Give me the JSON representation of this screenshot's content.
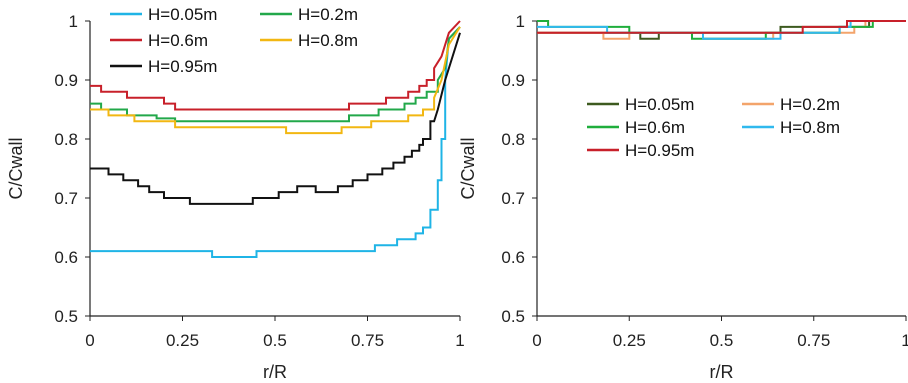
{
  "chart_data": [
    {
      "type": "line",
      "xlabel": "r/R",
      "ylabel": "C/Cwall",
      "xlim": [
        0,
        1
      ],
      "ylim": [
        0.5,
        1
      ],
      "xticks": [
        "0",
        "0.25",
        "0.5",
        "0.75",
        "1"
      ],
      "yticks": [
        "0.5",
        "0.6",
        "0.7",
        "0.8",
        "0.9",
        "1"
      ],
      "legend": "top",
      "series": [
        {
          "name": "H=0.05m",
          "color": "#1fb4e6",
          "x": [
            0,
            0.33,
            0.33,
            0.45,
            0.45,
            0.77,
            0.77,
            0.83,
            0.83,
            0.88,
            0.88,
            0.9,
            0.9,
            0.92,
            0.92,
            0.94,
            0.94,
            0.95,
            0.95,
            0.96,
            0.96,
            0.97,
            1.0
          ],
          "y": [
            0.61,
            0.61,
            0.6,
            0.6,
            0.61,
            0.61,
            0.62,
            0.62,
            0.63,
            0.63,
            0.64,
            0.64,
            0.65,
            0.65,
            0.68,
            0.68,
            0.73,
            0.73,
            0.8,
            0.8,
            0.9,
            0.97,
            0.99
          ]
        },
        {
          "name": "H=0.2m",
          "color": "#22a84a",
          "x": [
            0,
            0.03,
            0.03,
            0.1,
            0.1,
            0.18,
            0.18,
            0.23,
            0.23,
            0.7,
            0.7,
            0.78,
            0.78,
            0.85,
            0.85,
            0.88,
            0.88,
            0.91,
            0.91,
            0.94,
            0.94,
            0.96,
            0.97,
            1.0
          ],
          "y": [
            0.86,
            0.86,
            0.85,
            0.85,
            0.84,
            0.84,
            0.835,
            0.835,
            0.83,
            0.83,
            0.84,
            0.84,
            0.85,
            0.85,
            0.86,
            0.86,
            0.87,
            0.87,
            0.88,
            0.88,
            0.9,
            0.92,
            0.97,
            0.99
          ]
        },
        {
          "name": "H=0.6m",
          "color": "#c8202a",
          "x": [
            0,
            0.03,
            0.03,
            0.1,
            0.1,
            0.2,
            0.2,
            0.23,
            0.23,
            0.7,
            0.7,
            0.8,
            0.8,
            0.86,
            0.86,
            0.89,
            0.89,
            0.91,
            0.91,
            0.93,
            0.93,
            0.95,
            0.97,
            1.0
          ],
          "y": [
            0.89,
            0.89,
            0.88,
            0.88,
            0.87,
            0.87,
            0.86,
            0.86,
            0.85,
            0.85,
            0.86,
            0.86,
            0.87,
            0.87,
            0.88,
            0.88,
            0.89,
            0.89,
            0.9,
            0.9,
            0.92,
            0.94,
            0.98,
            1.0
          ]
        },
        {
          "name": "H=0.8m",
          "color": "#f2b712",
          "x": [
            0,
            0.05,
            0.05,
            0.12,
            0.12,
            0.23,
            0.23,
            0.53,
            0.53,
            0.68,
            0.68,
            0.76,
            0.76,
            0.86,
            0.86,
            0.9,
            0.9,
            0.93,
            0.93,
            0.95,
            0.97,
            1.0
          ],
          "y": [
            0.85,
            0.85,
            0.84,
            0.84,
            0.83,
            0.83,
            0.82,
            0.82,
            0.81,
            0.81,
            0.82,
            0.82,
            0.83,
            0.83,
            0.84,
            0.84,
            0.85,
            0.85,
            0.87,
            0.9,
            0.96,
            0.99
          ]
        },
        {
          "name": "H=0.95m",
          "color": "#111111",
          "x": [
            0,
            0.05,
            0.05,
            0.09,
            0.09,
            0.13,
            0.13,
            0.16,
            0.16,
            0.2,
            0.2,
            0.27,
            0.27,
            0.44,
            0.44,
            0.51,
            0.51,
            0.56,
            0.56,
            0.61,
            0.61,
            0.67,
            0.67,
            0.71,
            0.71,
            0.75,
            0.75,
            0.79,
            0.79,
            0.82,
            0.82,
            0.85,
            0.85,
            0.87,
            0.87,
            0.89,
            0.89,
            0.9,
            0.9,
            0.92,
            0.92,
            0.93,
            0.94,
            0.96,
            1.0
          ],
          "y": [
            0.75,
            0.75,
            0.74,
            0.74,
            0.73,
            0.73,
            0.72,
            0.72,
            0.71,
            0.71,
            0.7,
            0.7,
            0.69,
            0.69,
            0.7,
            0.7,
            0.71,
            0.71,
            0.72,
            0.72,
            0.71,
            0.71,
            0.72,
            0.72,
            0.73,
            0.73,
            0.74,
            0.74,
            0.75,
            0.75,
            0.76,
            0.76,
            0.77,
            0.77,
            0.78,
            0.78,
            0.79,
            0.79,
            0.8,
            0.8,
            0.83,
            0.83,
            0.85,
            0.9,
            0.98
          ]
        }
      ]
    },
    {
      "type": "line",
      "xlabel": "r/R",
      "ylabel": "C/Cwall",
      "xlim": [
        0,
        1
      ],
      "ylim": [
        0.5,
        1
      ],
      "xticks": [
        "0",
        "0.25",
        "0.5",
        "0.75",
        "1"
      ],
      "yticks": [
        "0.5",
        "0.6",
        "0.7",
        "0.8",
        "0.9",
        "1"
      ],
      "legend": "center",
      "series": [
        {
          "name": "H=0.05m",
          "color": "#3d5a1f",
          "x": [
            0,
            0.02,
            0.02,
            0.28,
            0.28,
            0.33,
            0.33,
            0.4,
            0.4,
            0.66,
            0.66,
            0.9,
            0.9,
            1.0
          ],
          "y": [
            0.98,
            0.98,
            0.98,
            0.98,
            0.97,
            0.97,
            0.98,
            0.98,
            0.98,
            0.98,
            0.99,
            0.99,
            1.0,
            1.0
          ]
        },
        {
          "name": "H=0.2m",
          "color": "#f3a46b",
          "x": [
            0,
            0.18,
            0.18,
            0.25,
            0.25,
            0.45,
            0.45,
            0.64,
            0.64,
            0.86,
            0.86,
            0.89,
            0.89,
            1.0
          ],
          "y": [
            0.98,
            0.98,
            0.97,
            0.97,
            0.98,
            0.98,
            0.97,
            0.97,
            0.98,
            0.98,
            0.99,
            0.99,
            1.0,
            1.0
          ]
        },
        {
          "name": "H=0.6m",
          "color": "#1fae3c",
          "x": [
            0,
            0.03,
            0.03,
            0.25,
            0.25,
            0.42,
            0.42,
            0.62,
            0.62,
            0.82,
            0.82,
            0.91,
            0.91,
            1.0
          ],
          "y": [
            1.0,
            1.0,
            0.99,
            0.99,
            0.98,
            0.98,
            0.97,
            0.97,
            0.98,
            0.98,
            0.99,
            0.99,
            1.0,
            1.0
          ]
        },
        {
          "name": "H=0.8m",
          "color": "#30b9ee",
          "x": [
            0,
            0.19,
            0.19,
            0.45,
            0.45,
            0.66,
            0.66,
            0.82,
            0.82,
            0.85,
            0.85,
            1.0
          ],
          "y": [
            0.99,
            0.99,
            0.98,
            0.98,
            0.97,
            0.97,
            0.98,
            0.98,
            0.99,
            0.99,
            1.0,
            1.0
          ]
        },
        {
          "name": "H=0.95m",
          "color": "#c8202a",
          "x": [
            0,
            0.72,
            0.72,
            0.84,
            0.84,
            1.0
          ],
          "y": [
            0.98,
            0.98,
            0.99,
            0.99,
            1.0,
            1.0
          ]
        }
      ]
    }
  ]
}
